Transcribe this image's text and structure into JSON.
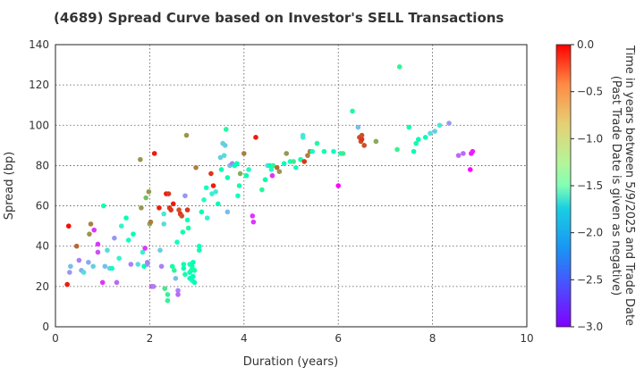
{
  "chart_data": {
    "type": "scatter",
    "title": "(4689)   Spread Curve based on Investor's SELL Transactions",
    "xlabel": "Duration (years)",
    "ylabel": "Spread (bp)",
    "xlim": [
      0,
      10
    ],
    "ylim": [
      0,
      140
    ],
    "xticks": [
      "0",
      "2",
      "4",
      "6",
      "8",
      "10"
    ],
    "yticks": [
      "0",
      "20",
      "40",
      "60",
      "80",
      "100",
      "120",
      "140"
    ],
    "grid": true,
    "colorbar": {
      "label_line1": "Time in years between 5/9/2025 and Trade Date",
      "label_line2": "(Past Trade Date is given as negative)",
      "range": [
        -3.0,
        0.0
      ],
      "ticks": [
        "0.0",
        "−0.5",
        "−1.0",
        "−1.5",
        "−2.0",
        "−2.5",
        "−3.0"
      ],
      "colormap": "rainbow"
    },
    "points_note": "each point: [duration, spread, time]",
    "points": [
      [
        0.25,
        21,
        -0.1
      ],
      [
        0.28,
        50,
        -0.05
      ],
      [
        0.3,
        27,
        -2.4
      ],
      [
        0.32,
        30,
        -2.2
      ],
      [
        0.45,
        40,
        -0.4
      ],
      [
        0.5,
        33,
        -2.5
      ],
      [
        0.55,
        28,
        -2.3
      ],
      [
        0.6,
        27,
        -2.0
      ],
      [
        0.7,
        32,
        -2.3
      ],
      [
        0.72,
        46,
        -0.6
      ],
      [
        0.75,
        51,
        -0.5
      ],
      [
        0.8,
        30,
        -2.1
      ],
      [
        0.82,
        48,
        -2.8
      ],
      [
        0.9,
        37,
        -2.7
      ],
      [
        0.9,
        41,
        -2.8
      ],
      [
        1.0,
        22,
        -2.8
      ],
      [
        1.02,
        60,
        -1.4
      ],
      [
        1.05,
        30,
        -2.2
      ],
      [
        1.1,
        38,
        -2.0
      ],
      [
        1.15,
        29,
        -2.1
      ],
      [
        1.2,
        29,
        -1.6
      ],
      [
        1.25,
        44,
        -2.4
      ],
      [
        1.3,
        22,
        -2.6
      ],
      [
        1.35,
        34,
        -1.8
      ],
      [
        1.4,
        50,
        -1.8
      ],
      [
        1.5,
        54,
        -1.5
      ],
      [
        1.55,
        43,
        -1.6
      ],
      [
        1.6,
        31,
        -2.5
      ],
      [
        1.65,
        46,
        -1.5
      ],
      [
        1.75,
        31,
        -2.0
      ],
      [
        1.8,
        83,
        -0.6
      ],
      [
        1.82,
        59,
        -0.6
      ],
      [
        1.85,
        37,
        -1.8
      ],
      [
        1.88,
        30,
        -1.5
      ],
      [
        1.9,
        39,
        -2.8
      ],
      [
        1.92,
        64,
        -0.8
      ],
      [
        1.95,
        31,
        -2.4
      ],
      [
        1.95,
        32,
        -2.5
      ],
      [
        1.98,
        67,
        -0.6
      ],
      [
        2.0,
        51,
        -0.7
      ],
      [
        2.02,
        52,
        -0.5
      ],
      [
        2.05,
        20,
        -2.7
      ],
      [
        2.08,
        20,
        -2.5
      ],
      [
        2.1,
        86,
        -0.1
      ],
      [
        2.2,
        59,
        -0.1
      ],
      [
        2.22,
        38,
        -2.1
      ],
      [
        2.25,
        30,
        -2.5
      ],
      [
        2.3,
        56,
        -1.9
      ],
      [
        2.3,
        51,
        -2.0
      ],
      [
        2.32,
        19,
        -1.1
      ],
      [
        2.35,
        66,
        -0.1
      ],
      [
        2.38,
        13,
        -1.2
      ],
      [
        2.38,
        16,
        -1.2
      ],
      [
        2.4,
        66,
        -0.2
      ],
      [
        2.42,
        59,
        -0.2
      ],
      [
        2.45,
        58,
        -0.2
      ],
      [
        2.48,
        30,
        -1.4
      ],
      [
        2.5,
        61,
        -0.1
      ],
      [
        2.52,
        28,
        -1.2
      ],
      [
        2.55,
        24,
        -2.2
      ],
      [
        2.58,
        42,
        -1.6
      ],
      [
        2.6,
        18,
        -2.5
      ],
      [
        2.6,
        16,
        -2.6
      ],
      [
        2.62,
        58,
        -0.3
      ],
      [
        2.65,
        56,
        -0.2
      ],
      [
        2.68,
        55,
        -0.3
      ],
      [
        2.7,
        47,
        -1.4
      ],
      [
        2.72,
        31,
        -1.4
      ],
      [
        2.72,
        29,
        -1.5
      ],
      [
        2.75,
        65,
        -2.4
      ],
      [
        2.75,
        26,
        -1.4
      ],
      [
        2.78,
        95,
        -0.6
      ],
      [
        2.8,
        58,
        -0.2
      ],
      [
        2.8,
        53,
        -1.6
      ],
      [
        2.82,
        49,
        -1.3
      ],
      [
        2.85,
        31,
        -1.6
      ],
      [
        2.85,
        27,
        -1.5
      ],
      [
        2.85,
        24,
        -1.5
      ],
      [
        2.88,
        28,
        -1.4
      ],
      [
        2.9,
        30,
        -1.4
      ],
      [
        2.9,
        23,
        -1.6
      ],
      [
        2.92,
        32,
        -1.5
      ],
      [
        2.92,
        25,
        -1.5
      ],
      [
        2.95,
        28,
        -1.4
      ],
      [
        2.95,
        22,
        -1.5
      ],
      [
        2.98,
        79,
        -0.5
      ],
      [
        3.05,
        40,
        -1.6
      ],
      [
        3.05,
        38,
        -1.4
      ],
      [
        3.1,
        57,
        -1.5
      ],
      [
        3.15,
        63,
        -1.7
      ],
      [
        3.2,
        69,
        -1.6
      ],
      [
        3.22,
        54,
        -1.8
      ],
      [
        3.3,
        76,
        -0.2
      ],
      [
        3.32,
        66,
        -1.8
      ],
      [
        3.35,
        70,
        -0.1
      ],
      [
        3.4,
        67,
        -1.9
      ],
      [
        3.45,
        61,
        -1.5
      ],
      [
        3.5,
        84,
        -2.1
      ],
      [
        3.52,
        78,
        -1.5
      ],
      [
        3.55,
        91,
        -2.1
      ],
      [
        3.58,
        85,
        -2.0
      ],
      [
        3.6,
        90,
        -2.1
      ],
      [
        3.62,
        98,
        -1.3
      ],
      [
        3.65,
        57,
        -2.2
      ],
      [
        3.65,
        74,
        -1.5
      ],
      [
        3.7,
        80,
        -2.2
      ],
      [
        3.75,
        81,
        -2.5
      ],
      [
        3.8,
        80,
        -1.5
      ],
      [
        3.85,
        81,
        -1.5
      ],
      [
        3.87,
        65,
        -1.6
      ],
      [
        3.9,
        70,
        -1.4
      ],
      [
        3.92,
        76,
        -0.7
      ],
      [
        4.0,
        86,
        -0.5
      ],
      [
        4.05,
        75,
        -1.5
      ],
      [
        4.1,
        78,
        -1.7
      ],
      [
        4.18,
        55,
        -2.8
      ],
      [
        4.2,
        52,
        -2.8
      ],
      [
        4.25,
        94,
        -0.1
      ],
      [
        4.38,
        68,
        -1.3
      ],
      [
        4.45,
        73,
        -1.5
      ],
      [
        4.5,
        80,
        -2.0
      ],
      [
        4.55,
        80,
        -1.5
      ],
      [
        4.58,
        78,
        -1.7
      ],
      [
        4.6,
        75,
        -2.8
      ],
      [
        4.62,
        80,
        -1.2
      ],
      [
        4.7,
        79,
        -0.4
      ],
      [
        4.75,
        77,
        -0.6
      ],
      [
        4.85,
        81,
        -1.5
      ],
      [
        4.9,
        86,
        -0.6
      ],
      [
        4.98,
        82,
        -1.6
      ],
      [
        5.05,
        82,
        -1.1
      ],
      [
        5.1,
        79,
        -1.6
      ],
      [
        5.2,
        83,
        -1.4
      ],
      [
        5.25,
        94,
        -1.8
      ],
      [
        5.25,
        95,
        -1.9
      ],
      [
        5.28,
        82,
        -0.2
      ],
      [
        5.35,
        85,
        -0.5
      ],
      [
        5.4,
        87,
        -0.5
      ],
      [
        5.45,
        87,
        -1.6
      ],
      [
        5.55,
        91,
        -1.3
      ],
      [
        5.7,
        87,
        -1.4
      ],
      [
        5.9,
        87,
        -1.6
      ],
      [
        6.0,
        70,
        -3.0
      ],
      [
        6.05,
        86,
        -1.6
      ],
      [
        6.1,
        86,
        -1.1
      ],
      [
        6.3,
        107,
        -1.3
      ],
      [
        6.42,
        99,
        -2.2
      ],
      [
        6.45,
        94,
        -0.3
      ],
      [
        6.48,
        92,
        -0.3
      ],
      [
        6.5,
        93,
        -0.2
      ],
      [
        6.5,
        95,
        -0.3
      ],
      [
        6.55,
        90,
        -0.3
      ],
      [
        6.8,
        92,
        -0.7
      ],
      [
        7.25,
        88,
        -1.2
      ],
      [
        7.3,
        129,
        -1.2
      ],
      [
        7.5,
        99,
        -1.4
      ],
      [
        7.6,
        87,
        -1.5
      ],
      [
        7.65,
        91,
        -1.4
      ],
      [
        7.7,
        93,
        -1.5
      ],
      [
        7.85,
        94,
        -1.5
      ],
      [
        7.95,
        96,
        -2.0
      ],
      [
        8.05,
        97,
        -2.1
      ],
      [
        8.15,
        100,
        -1.9
      ],
      [
        8.35,
        101,
        -2.4
      ],
      [
        8.55,
        85,
        -2.6
      ],
      [
        8.65,
        86,
        -2.6
      ],
      [
        8.8,
        78,
        -3.0
      ],
      [
        8.82,
        86,
        -2.9
      ],
      [
        8.85,
        87,
        -2.9
      ]
    ]
  }
}
